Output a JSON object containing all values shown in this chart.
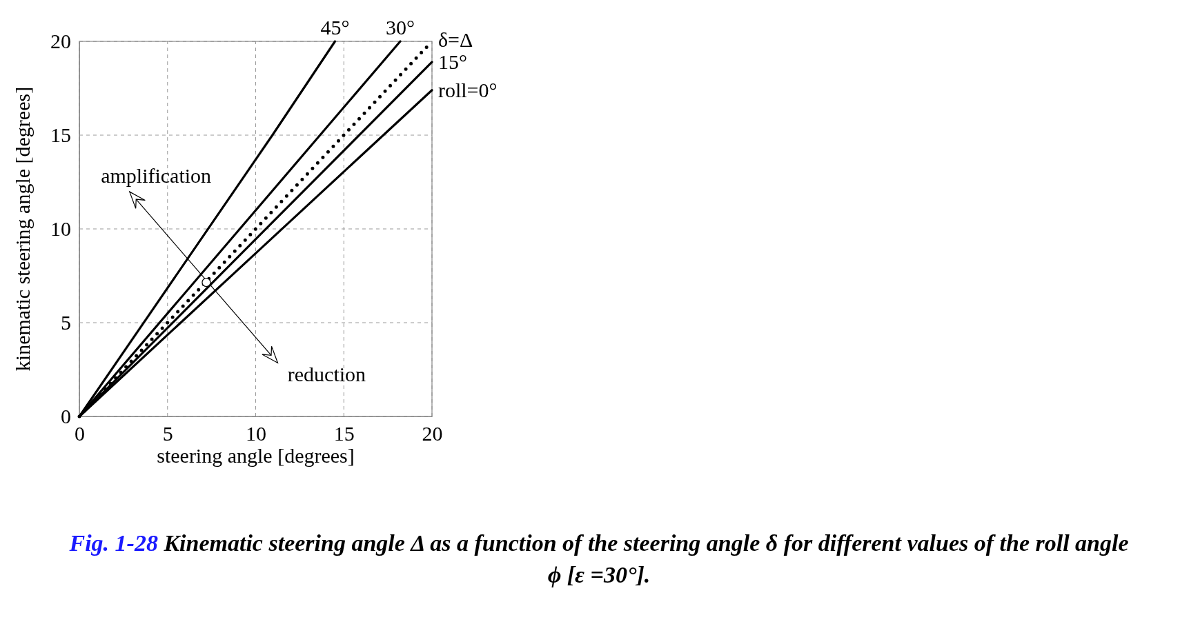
{
  "chart_data": {
    "type": "line",
    "title": "Fig. 1-28 Kinematic steering angle Δ as a function of the steering angle δ for different values of the roll angle ϕ [ε =30°].",
    "xlabel": "steering angle [degrees]",
    "ylabel": "kinematic steering angle [degrees]",
    "xlim": [
      0,
      20
    ],
    "ylim": [
      0,
      20
    ],
    "xticks": [
      0,
      5,
      10,
      15,
      20
    ],
    "yticks": [
      0,
      5,
      10,
      15,
      20
    ],
    "grid": true,
    "marker": "none",
    "series": [
      {
        "name": "45°",
        "color": "#000000",
        "x": [
          0,
          10.95,
          14.5
        ],
        "values": [
          0,
          15,
          20
        ]
      },
      {
        "name": "30°",
        "color": "#000000",
        "x": [
          0,
          18.2
        ],
        "values": [
          0,
          20
        ]
      },
      {
        "name": "δ=Δ",
        "color": "#000000",
        "line_style": "dotted",
        "x": [
          0,
          19.7
        ],
        "values": [
          0,
          19.7
        ]
      },
      {
        "name": "15°",
        "color": "#000000",
        "x": [
          0,
          10,
          20
        ],
        "values": [
          0,
          9.45,
          18.9
        ]
      },
      {
        "name": "roll=0°",
        "color": "#000000",
        "x": [
          0,
          10,
          20
        ],
        "values": [
          0,
          8.7,
          17.4
        ]
      }
    ],
    "annotations": [
      "amplification",
      "reduction"
    ]
  }
}
